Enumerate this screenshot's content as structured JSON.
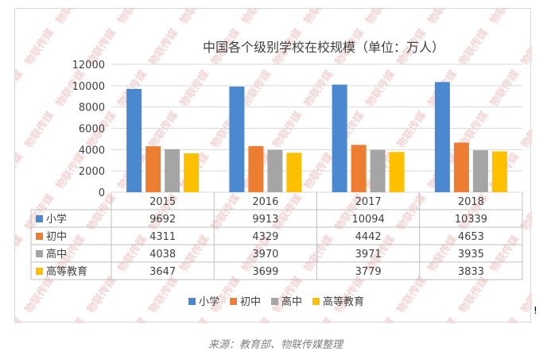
{
  "chart_data": {
    "type": "bar",
    "title": "中国各个级别学校在校规模（单位：万人）",
    "categories": [
      "2015",
      "2016",
      "2017",
      "2018"
    ],
    "series": [
      {
        "name": "小学",
        "color": "#4a89d0",
        "values": [
          9692,
          9913,
          10094,
          10339
        ]
      },
      {
        "name": "初中",
        "color": "#ed7d31",
        "values": [
          4311,
          4329,
          4442,
          4653
        ]
      },
      {
        "name": "高中",
        "color": "#a5a5a5",
        "values": [
          4038,
          3970,
          3971,
          3935
        ]
      },
      {
        "name": "高等教育",
        "color": "#ffc000",
        "values": [
          3647,
          3699,
          3779,
          3833
        ]
      }
    ],
    "ylim": [
      0,
      12000
    ],
    "yticks": [
      "0",
      "2000",
      "4000",
      "6000",
      "8000",
      "10000",
      "12000"
    ],
    "grid": true,
    "legend": "bottom",
    "data_table": true,
    "watermark": "物联传媒"
  },
  "caption": "来源：教育部、物联传媒整理",
  "stray_mark": "!"
}
